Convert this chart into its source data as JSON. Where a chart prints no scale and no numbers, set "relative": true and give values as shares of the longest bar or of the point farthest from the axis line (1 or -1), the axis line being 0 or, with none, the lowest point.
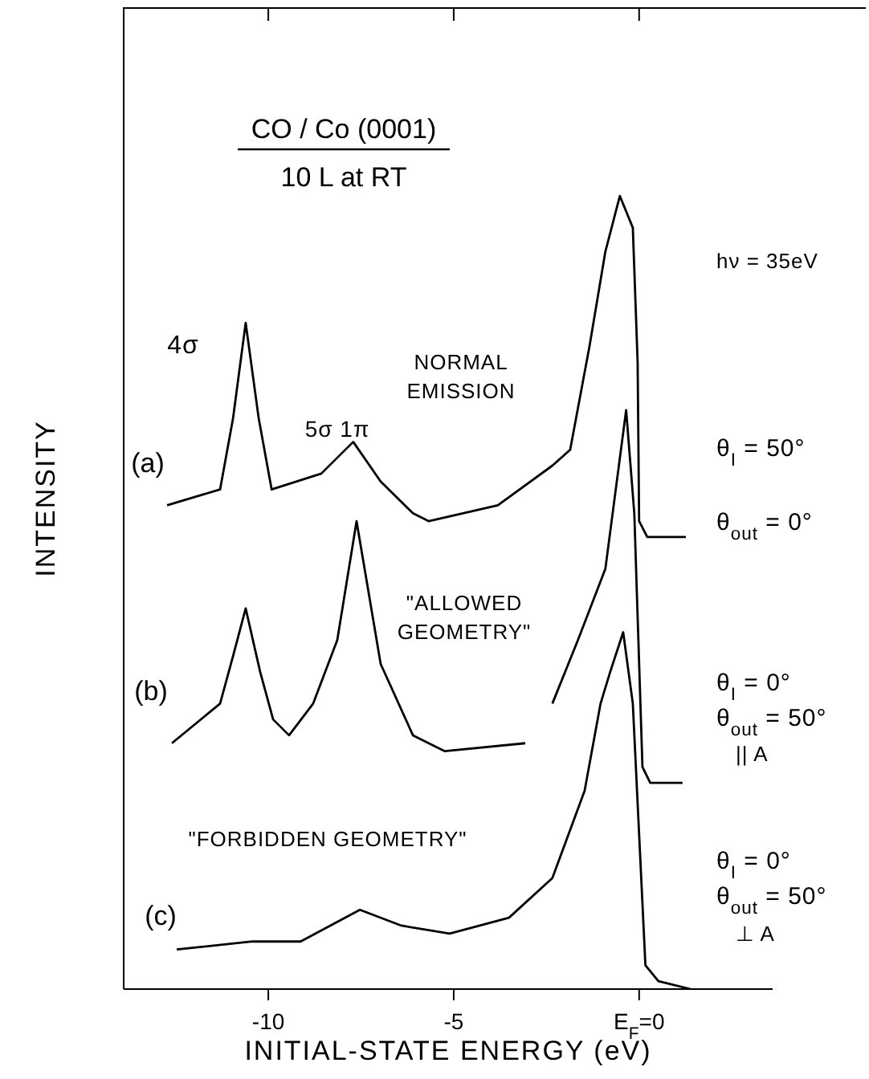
{
  "chart_data": {
    "type": "line",
    "relative": true,
    "title": "CO / Co (0001)",
    "subtitle": "10 L at RT",
    "xlabel": "INITIAL-STATE ENERGY (eV)",
    "ylabel": "INTENSITY",
    "xlim": [
      -13.9,
      3.6
    ],
    "xticks": [
      -10,
      -5,
      {
        "value": 0,
        "label": "E$_{F}$=0"
      }
    ],
    "series": [
      {
        "name": "(a)",
        "color": "#000000",
        "x": [
          -12.73,
          -11.3,
          -10.95,
          -10.61,
          -10.26,
          -9.91,
          -8.57,
          -7.71,
          -6.97,
          -6.1,
          -5.67,
          -3.81,
          -2.34,
          -1.86,
          -1.34,
          -0.91,
          -0.52,
          -0.17,
          -0.04,
          0.0,
          0.22,
          1.26
        ],
        "values": [
          0.61,
          0.63,
          0.72,
          0.84,
          0.72,
          0.63,
          0.65,
          0.69,
          0.64,
          0.6,
          0.59,
          0.61,
          0.66,
          0.68,
          0.81,
          0.93,
          1.0,
          0.96,
          0.79,
          0.59,
          0.57,
          0.57
        ]
      },
      {
        "name": "(b)",
        "color": "#000000",
        "x": [
          -12.6,
          -11.3,
          -10.95,
          -10.61,
          -10.22,
          -9.87,
          -9.44,
          -8.79,
          -8.14,
          -7.62,
          -6.97,
          -6.1,
          -5.24,
          -3.07,
          -2.7,
          -2.34,
          -1.65,
          -0.91,
          -0.35,
          -0.13,
          0.09,
          0.3,
          1.17
        ],
        "values": [
          0.31,
          0.36,
          0.42,
          0.48,
          0.4,
          0.34,
          0.32,
          0.36,
          0.44,
          0.59,
          0.41,
          0.32,
          0.3,
          0.31,
          null,
          0.36,
          0.44,
          0.53,
          0.73,
          0.6,
          0.28,
          0.26,
          0.26
        ]
      },
      {
        "name": "(c)",
        "color": "#000000",
        "x": [
          -12.47,
          -10.43,
          -9.13,
          -7.53,
          -6.41,
          -5.11,
          -3.51,
          -2.34,
          -1.47,
          -1.04,
          -0.78,
          -0.43,
          -0.17,
          0.17,
          0.52,
          1.39
        ],
        "values": [
          0.05,
          0.06,
          0.06,
          0.1,
          0.08,
          0.07,
          0.09,
          0.14,
          0.25,
          0.36,
          0.4,
          0.45,
          0.36,
          0.03,
          0.01,
          0.0
        ]
      }
    ],
    "annotations": [
      "4σ",
      "5σ 1π",
      "NORMAL EMISSION",
      "\"ALLOWED GEOMETRY\"",
      "\"FORBIDDEN GEOMETRY\"",
      "hν = 35eV",
      "θ$_{I}$ = 50°",
      "θ$_{out}$ = 0°",
      "θ$_{I}$ = 0°",
      "θ$_{out}$ = 50°",
      "|| A",
      "θ$_{I}$ = 0°",
      "θ$_{out}$ = 50°",
      "⊥ A"
    ],
    "legend": false
  }
}
